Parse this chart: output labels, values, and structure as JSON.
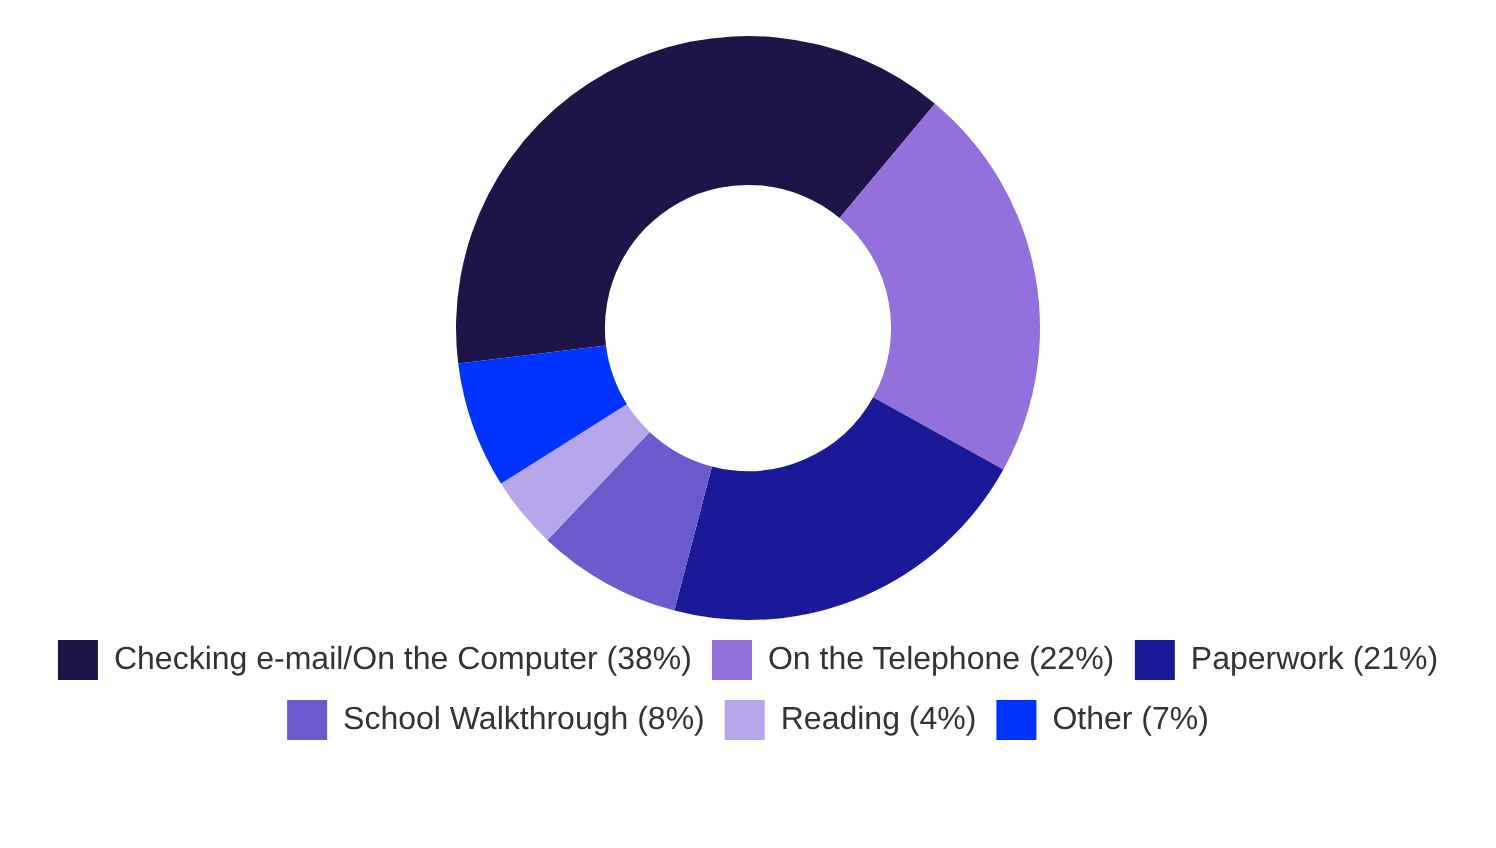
{
  "chart_data": {
    "type": "donut",
    "categories": [
      "Checking e-mail/On the Computer (38%)",
      "On the Telephone (22%)",
      "Paperwork (21%)",
      "School Walkthrough (8%)",
      "Reading (4%)",
      "Other (7%)"
    ],
    "values": [
      38,
      22,
      21,
      8,
      4,
      7
    ],
    "colors": [
      "#1f1447",
      "#9370db",
      "#1a1a99",
      "#6a5acd",
      "#b8a6ea",
      "#0033ff"
    ],
    "legend": "bottom"
  }
}
